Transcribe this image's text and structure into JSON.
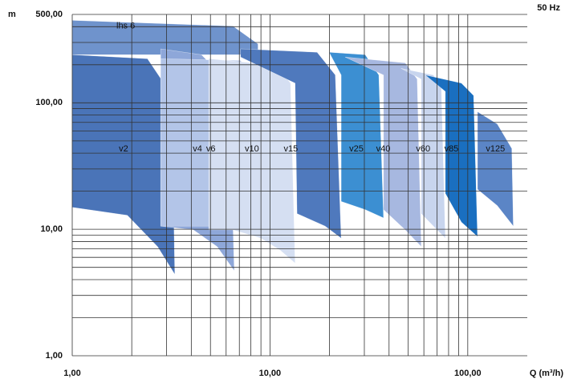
{
  "chart_data": {
    "type": "region",
    "y_label": "m",
    "x_label": "Q (m³/h)",
    "frequency": "50 Hz",
    "xscale": "log",
    "yscale": "log",
    "xlim": [
      1,
      200
    ],
    "ylim": [
      1,
      500
    ],
    "xticks": [
      {
        "value": 1,
        "label": "1,00"
      },
      {
        "value": 10,
        "label": "10,00"
      },
      {
        "value": 100,
        "label": "100,00"
      }
    ],
    "yticks": [
      {
        "value": 1,
        "label": "1,00"
      },
      {
        "value": 10,
        "label": "10,00"
      },
      {
        "value": 100,
        "label": "100,00"
      },
      {
        "value": 500,
        "label": "500,00"
      }
    ],
    "xgrid": [
      2,
      3,
      4,
      5,
      6,
      7,
      8,
      9,
      20,
      30,
      40,
      50,
      60,
      70,
      80,
      90
    ],
    "ygrid": [
      2,
      3,
      4,
      5,
      6,
      7,
      8,
      9,
      20,
      30,
      40,
      50,
      60,
      70,
      80,
      90,
      200,
      300,
      400
    ],
    "series": [
      {
        "name": "lhs 6",
        "color": "#6f93cc",
        "points": [
          [
            1,
            449
          ],
          [
            6.5,
            404
          ],
          [
            8.7,
            292
          ],
          [
            8.7,
            240
          ],
          [
            1,
            240
          ]
        ]
      },
      {
        "name": "v2",
        "color": "#4a74b8",
        "points": [
          [
            1,
            240
          ],
          [
            2.4,
            223
          ],
          [
            3.1,
            123
          ],
          [
            3.2,
            79
          ],
          [
            3.3,
            4.4
          ],
          [
            2.7,
            7.3
          ],
          [
            1.9,
            12.9
          ],
          [
            1,
            14.9
          ]
        ]
      },
      {
        "name": "v4",
        "color": "#8ea7d9",
        "points": [
          [
            2.8,
            267
          ],
          [
            4.5,
            240
          ],
          [
            6.2,
            143
          ],
          [
            6.6,
            4.7
          ],
          [
            5.4,
            7.3
          ],
          [
            4.1,
            9.9
          ],
          [
            2.8,
            10.6
          ]
        ]
      },
      {
        "name": "v6",
        "color": "#b3c5e8",
        "points": [
          [
            2.8,
            223
          ],
          [
            7.1,
            216
          ],
          [
            8.6,
            143
          ],
          [
            9,
            8.5
          ],
          [
            7.8,
            9.9
          ],
          [
            5.9,
            10.6
          ],
          [
            2.8,
            10.6
          ]
        ]
      },
      {
        "name": "v10",
        "color": "#d5dff2",
        "points": [
          [
            4.9,
            223
          ],
          [
            10.8,
            198
          ],
          [
            12.7,
            143
          ],
          [
            13.4,
            5.4
          ],
          [
            11.3,
            6.8
          ],
          [
            9,
            8.5
          ],
          [
            6.5,
            9.9
          ],
          [
            4.9,
            9.9
          ]
        ]
      },
      {
        "name": "v15",
        "color": "#4f79bd",
        "points": [
          [
            7.1,
            267
          ],
          [
            17.3,
            251
          ],
          [
            21.4,
            166
          ],
          [
            22.9,
            8.5
          ],
          [
            19,
            10.6
          ],
          [
            13.7,
            13.3
          ],
          [
            13.4,
            143
          ],
          [
            7.1,
            230
          ]
        ]
      },
      {
        "name": "v25",
        "color": "#3c8fd2",
        "points": [
          [
            19.9,
            251
          ],
          [
            30.3,
            240
          ],
          [
            35.5,
            166
          ],
          [
            37.5,
            12.3
          ],
          [
            30.3,
            14.3
          ],
          [
            22.9,
            16.6
          ],
          [
            22.9,
            166
          ]
        ]
      },
      {
        "name": "v40",
        "color": "#a7b8e0",
        "points": [
          [
            24,
            230
          ],
          [
            48.3,
            207
          ],
          [
            55.5,
            154
          ],
          [
            58.2,
            7.3
          ],
          [
            48.3,
            9.9
          ],
          [
            37.5,
            14.3
          ],
          [
            37.5,
            166
          ]
        ]
      },
      {
        "name": "v60",
        "color": "#c8d5ee",
        "points": [
          [
            46,
            187
          ],
          [
            67,
            166
          ],
          [
            73.5,
            133
          ],
          [
            77,
            8.5
          ],
          [
            67,
            10.6
          ],
          [
            58.2,
            13.3
          ],
          [
            58.2,
            154
          ]
        ]
      },
      {
        "name": "v85",
        "color": "#1a6fc0",
        "points": [
          [
            61,
            166
          ],
          [
            92.9,
            143
          ],
          [
            107,
            114
          ],
          [
            112,
            8.75
          ],
          [
            92.9,
            11.4
          ],
          [
            77,
            19.2
          ],
          [
            77,
            123
          ]
        ]
      },
      {
        "name": "v125",
        "color": "#5b85c6",
        "points": [
          [
            112,
            85
          ],
          [
            141,
            68
          ],
          [
            167,
            43.5
          ],
          [
            170,
            10.6
          ],
          [
            141,
            15.4
          ],
          [
            112,
            20.7
          ]
        ]
      }
    ]
  }
}
